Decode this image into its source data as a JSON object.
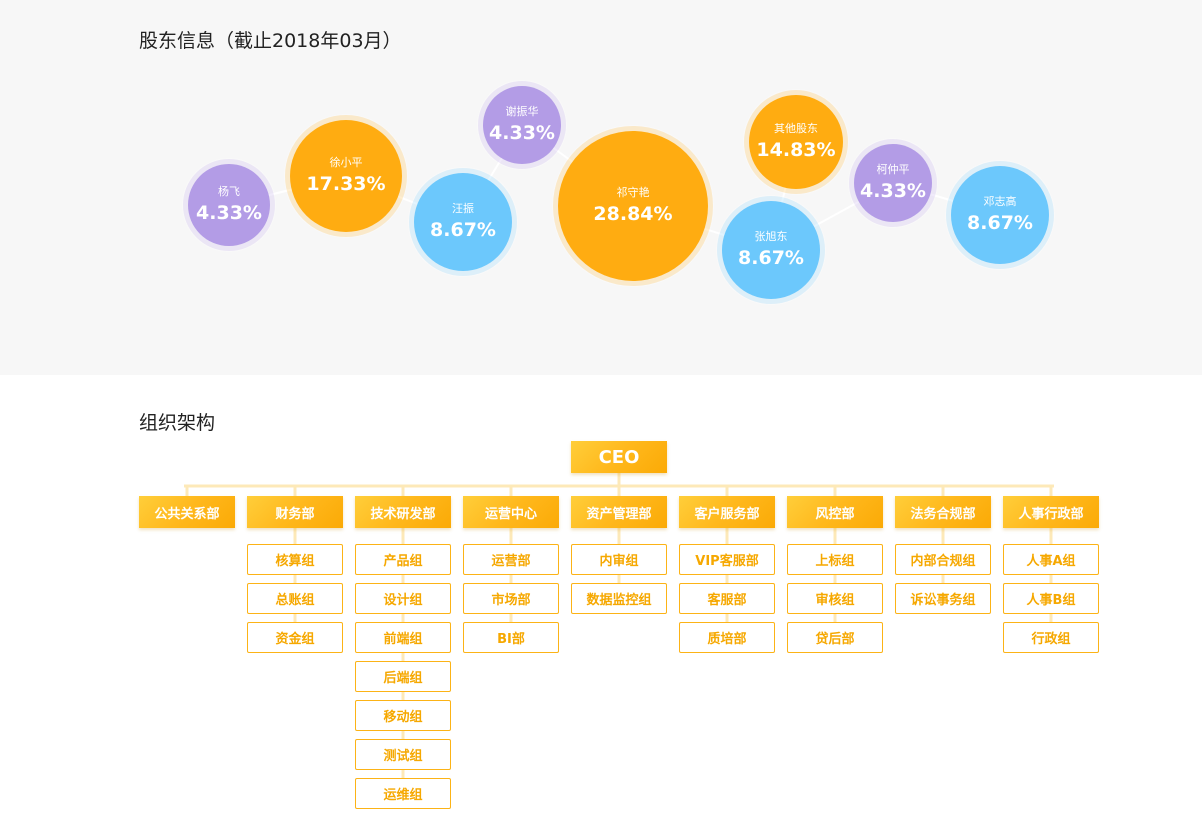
{
  "shareholders": {
    "title": "股东信息（截止2018年03月）",
    "colors": {
      "purple": "#b39ce6",
      "orange": "#ffac11",
      "blue": "#6cc8fc"
    },
    "bubbles": [
      {
        "name": "杨飞",
        "percent": "4.33%",
        "value": 4.33,
        "color": "purple"
      },
      {
        "name": "徐小平",
        "percent": "17.33%",
        "value": 17.33,
        "color": "orange"
      },
      {
        "name": "汪振",
        "percent": "8.67%",
        "value": 8.67,
        "color": "blue"
      },
      {
        "name": "谢振华",
        "percent": "4.33%",
        "value": 4.33,
        "color": "purple"
      },
      {
        "name": "祁守艳",
        "percent": "28.84%",
        "value": 28.84,
        "color": "orange"
      },
      {
        "name": "其他股东",
        "percent": "14.83%",
        "value": 14.83,
        "color": "orange"
      },
      {
        "name": "张旭东",
        "percent": "8.67%",
        "value": 8.67,
        "color": "blue"
      },
      {
        "name": "柯仲平",
        "percent": "4.33%",
        "value": 4.33,
        "color": "purple"
      },
      {
        "name": "邓志高",
        "percent": "8.67%",
        "value": 8.67,
        "color": "blue"
      }
    ]
  },
  "org": {
    "title": "组织架构",
    "ceo": "CEO",
    "accent_color": "#ffb81c",
    "departments": [
      {
        "name": "公共关系部",
        "subs": []
      },
      {
        "name": "财务部",
        "subs": [
          "核算组",
          "总账组",
          "资金组"
        ]
      },
      {
        "name": "技术研发部",
        "subs": [
          "产品组",
          "设计组",
          "前端组",
          "后端组",
          "移动组",
          "测试组",
          "运维组"
        ]
      },
      {
        "name": "运营中心",
        "subs": [
          "运营部",
          "市场部",
          "BI部"
        ]
      },
      {
        "name": "资产管理部",
        "subs": [
          "内审组",
          "数据监控组"
        ]
      },
      {
        "name": "客户服务部",
        "subs": [
          "VIP客服部",
          "客服部",
          "质培部"
        ]
      },
      {
        "name": "风控部",
        "subs": [
          "上标组",
          "审核组",
          "贷后部"
        ]
      },
      {
        "name": "法务合规部",
        "subs": [
          "内部合规组",
          "诉讼事务组"
        ]
      },
      {
        "name": "人事行政部",
        "subs": [
          "人事A组",
          "人事B组",
          "行政组"
        ]
      }
    ]
  }
}
